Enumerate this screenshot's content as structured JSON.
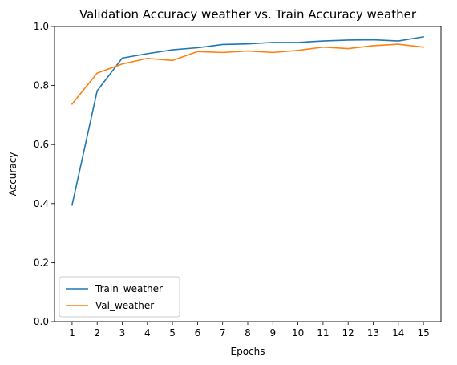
{
  "chart_data": {
    "type": "line",
    "title": "Validation Accuracy weather vs. Train Accuracy weather",
    "xlabel": "Epochs",
    "ylabel": "Accuracy",
    "x": [
      1,
      2,
      3,
      4,
      5,
      6,
      7,
      8,
      9,
      10,
      11,
      12,
      13,
      14,
      15
    ],
    "x_ticks": [
      "1",
      "2",
      "3",
      "4",
      "5",
      "6",
      "7",
      "8",
      "9",
      "10",
      "11",
      "12",
      "13",
      "14",
      "15"
    ],
    "xlim": [
      0.3,
      15.7
    ],
    "ylim": [
      0.0,
      1.0
    ],
    "y_ticks": [
      "0.0",
      "0.2",
      "0.4",
      "0.6",
      "0.8",
      "1.0"
    ],
    "grid": false,
    "legend_position": "lower-left",
    "series": [
      {
        "name": "Train_weather",
        "color": "#1f77b4",
        "values": [
          0.395,
          0.782,
          0.893,
          0.908,
          0.921,
          0.928,
          0.939,
          0.941,
          0.946,
          0.946,
          0.951,
          0.954,
          0.955,
          0.951,
          0.965
        ]
      },
      {
        "name": "Val_weather",
        "color": "#ff7f0e",
        "values": [
          0.737,
          0.842,
          0.873,
          0.892,
          0.885,
          0.915,
          0.912,
          0.917,
          0.912,
          0.919,
          0.93,
          0.925,
          0.935,
          0.94,
          0.93
        ]
      }
    ]
  }
}
